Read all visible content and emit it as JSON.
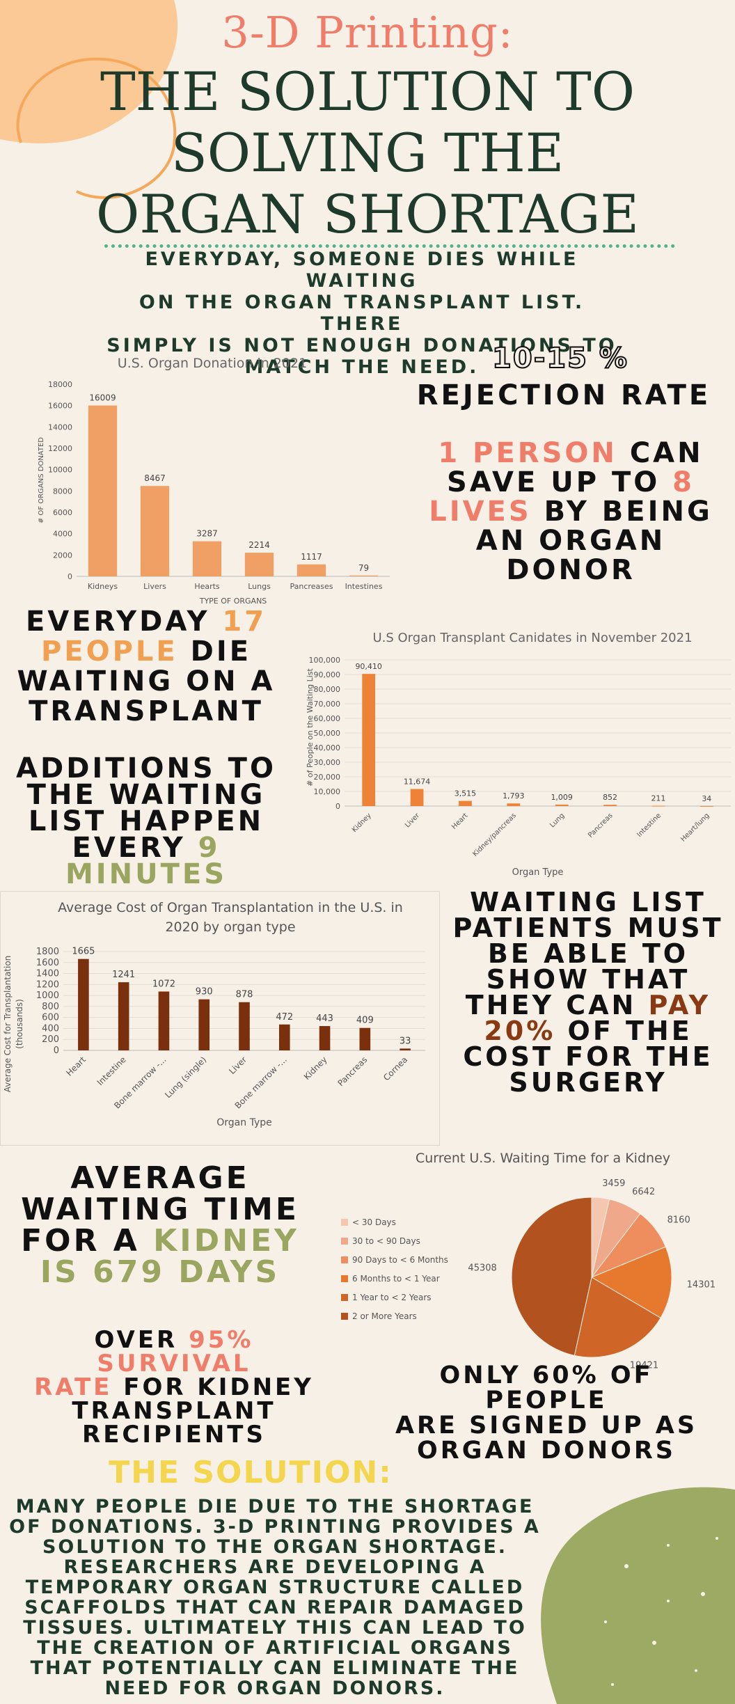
{
  "header": {
    "script_title": "3-D Printing:",
    "main_title_lines": [
      "THE SOLUTION TO",
      "SOLVING THE",
      "ORGAN SHORTAGE"
    ],
    "intro_lines": [
      "EVERYDAY, SOMEONE DIES WHILE WAITING",
      "ON THE ORGAN TRANSPLANT LIST. THERE",
      "SIMPLY IS NOT ENOUGH DONATIONS TO",
      "MATCH THE NEED."
    ]
  },
  "stats": {
    "rejection_pct": "10-15 %",
    "rejection_label": "REJECTION RATE",
    "save_a": "1 PERSON",
    "save_b": " CAN",
    "save_c": "SAVE UP TO ",
    "save_d": "8",
    "save_e": "LIVES",
    "save_f": " BY BEING",
    "save_g": "AN ORGAN",
    "save_h": "DONOR",
    "die_a": "EVERYDAY ",
    "die_b": "17",
    "die_c": "PEOPLE",
    "die_d": " DIE",
    "die_e": "WAITING ON A",
    "die_f": "TRANSPLANT",
    "add_a": "ADDITIONS TO",
    "add_b": "THE WAITING",
    "add_c": "LIST HAPPEN",
    "add_d": "EVERY ",
    "add_e": "9",
    "add_f": "MINUTES",
    "pay_a": "WAITING LIST",
    "pay_b": "PATIENTS MUST",
    "pay_c": "BE ABLE TO",
    "pay_d": "SHOW THAT",
    "pay_e": "THEY CAN ",
    "pay_f": "PAY",
    "pay_g": "20%",
    "pay_h": " OF THE",
    "pay_i": "COST FOR THE",
    "pay_j": "SURGERY",
    "wait_a": "AVERAGE",
    "wait_b": "WAITING TIME",
    "wait_c": "FOR A ",
    "wait_d": "KIDNEY",
    "wait_e": "IS 679 DAYS",
    "surv_a": "OVER ",
    "surv_b": "95% SURVIVAL",
    "surv_c": "RATE",
    "surv_d": " FOR KIDNEY",
    "surv_e": "TRANSPLANT",
    "surv_f": "RECIPIENTS",
    "only_a": "ONLY 60% OF PEOPLE",
    "only_b": "ARE SIGNED UP AS",
    "only_c": "ORGAN DONORS"
  },
  "solution": {
    "title": "THE SOLUTION:",
    "body_lines": [
      "MANY PEOPLE DIE DUE TO THE SHORTAGE",
      "OF DONATIONS. 3-D PRINTING PROVIDES A",
      "SOLUTION TO THE ORGAN SHORTAGE.",
      "RESEARCHERS ARE DEVELOPING A",
      "TEMPORARY ORGAN STRUCTURE CALLED",
      "SCAFFOLDS THAT CAN REPAIR DAMAGED",
      "TISSUES. ULTIMATELY THIS CAN LEAD TO",
      "THE CREATION OF ARTIFICIAL ORGANS",
      "THAT POTENTIALLY CAN ELIMINATE THE",
      "NEED FOR ORGAN DONORS."
    ]
  },
  "chart_data": [
    {
      "type": "bar",
      "title": "U.S. Organ Donation in 2021",
      "xlabel": "TYPE OF ORGANS",
      "ylabel": "# OF ORGANS DONATED",
      "categories": [
        "Kidneys",
        "Livers",
        "Hearts",
        "Lungs",
        "Pancreases",
        "Intestines"
      ],
      "values": [
        16009,
        8467,
        3287,
        2214,
        1117,
        79
      ],
      "value_labels": [
        "16009",
        "8467",
        "3287",
        "2214",
        "1117",
        "79"
      ],
      "ylim": [
        0,
        18000
      ],
      "yticks": [
        "0",
        "2000",
        "4000",
        "6000",
        "8000",
        "10000",
        "12000",
        "14000",
        "16000",
        "18000"
      ],
      "color": "#f0a065",
      "grid": false
    },
    {
      "type": "bar",
      "title": "U.S Organ Transplant Canidates in November 2021",
      "xlabel": "Organ Type",
      "ylabel": "# of People on the Waiting List",
      "categories": [
        "Kidney",
        "Liver",
        "Heart",
        "Kidney/pancreas",
        "Lung",
        "Pancreas",
        "Intestine",
        "Heart/lung"
      ],
      "values": [
        90410,
        11674,
        3515,
        1793,
        1009,
        852,
        211,
        34
      ],
      "value_labels": [
        "90,410",
        "11,674",
        "3,515",
        "1,793",
        "1,009",
        "852",
        "211",
        "34"
      ],
      "ylim": [
        0,
        100000
      ],
      "yticks": [
        "0",
        "10,000",
        "20,000",
        "30,000",
        "40,000",
        "50,000",
        "60,000",
        "70,000",
        "80,000",
        "90,000",
        "100,000"
      ],
      "color": "#ee8236",
      "grid": true
    },
    {
      "type": "bar",
      "title": "Average Cost of Organ Transplantation in the U.S. in 2020 by organ type",
      "xlabel": "Organ Type",
      "ylabel": "Average Cost for Transplantation (thousands)",
      "categories": [
        "Heart",
        "Intestine",
        "Bone marrow -...",
        "Lung (single)",
        "Liver",
        "Bone marrow -...",
        "Kidney",
        "Pancreas",
        "Cornea"
      ],
      "values": [
        1665,
        1241,
        1072,
        930,
        878,
        472,
        443,
        409,
        33
      ],
      "value_labels": [
        "1665",
        "1241",
        "1072",
        "930",
        "878",
        "472",
        "443",
        "409",
        "33"
      ],
      "ylim": [
        0,
        1800
      ],
      "yticks": [
        "0",
        "200",
        "400",
        "600",
        "800",
        "1000",
        "1200",
        "1400",
        "1600",
        "1800"
      ],
      "color": "#7a300c",
      "grid": true
    },
    {
      "type": "pie",
      "title": "Current U.S. Waiting Time for a Kidney",
      "legend_position": "left",
      "labels": [
        "< 30 Days",
        "30 to < 90 Days",
        "90 Days to < 6 Months",
        "6 Months to < 1 Year",
        "1 Year to < 2 Years",
        "2 or More Years"
      ],
      "values": [
        3459,
        6642,
        8160,
        14301,
        19421,
        45308
      ],
      "value_labels": [
        "3459",
        "6642",
        "8160",
        "14301",
        "19421",
        "45308"
      ],
      "colors": [
        "#f5c6b0",
        "#f0a88a",
        "#ee8e5e",
        "#e7792f",
        "#cf6526",
        "#b1521f"
      ]
    }
  ]
}
